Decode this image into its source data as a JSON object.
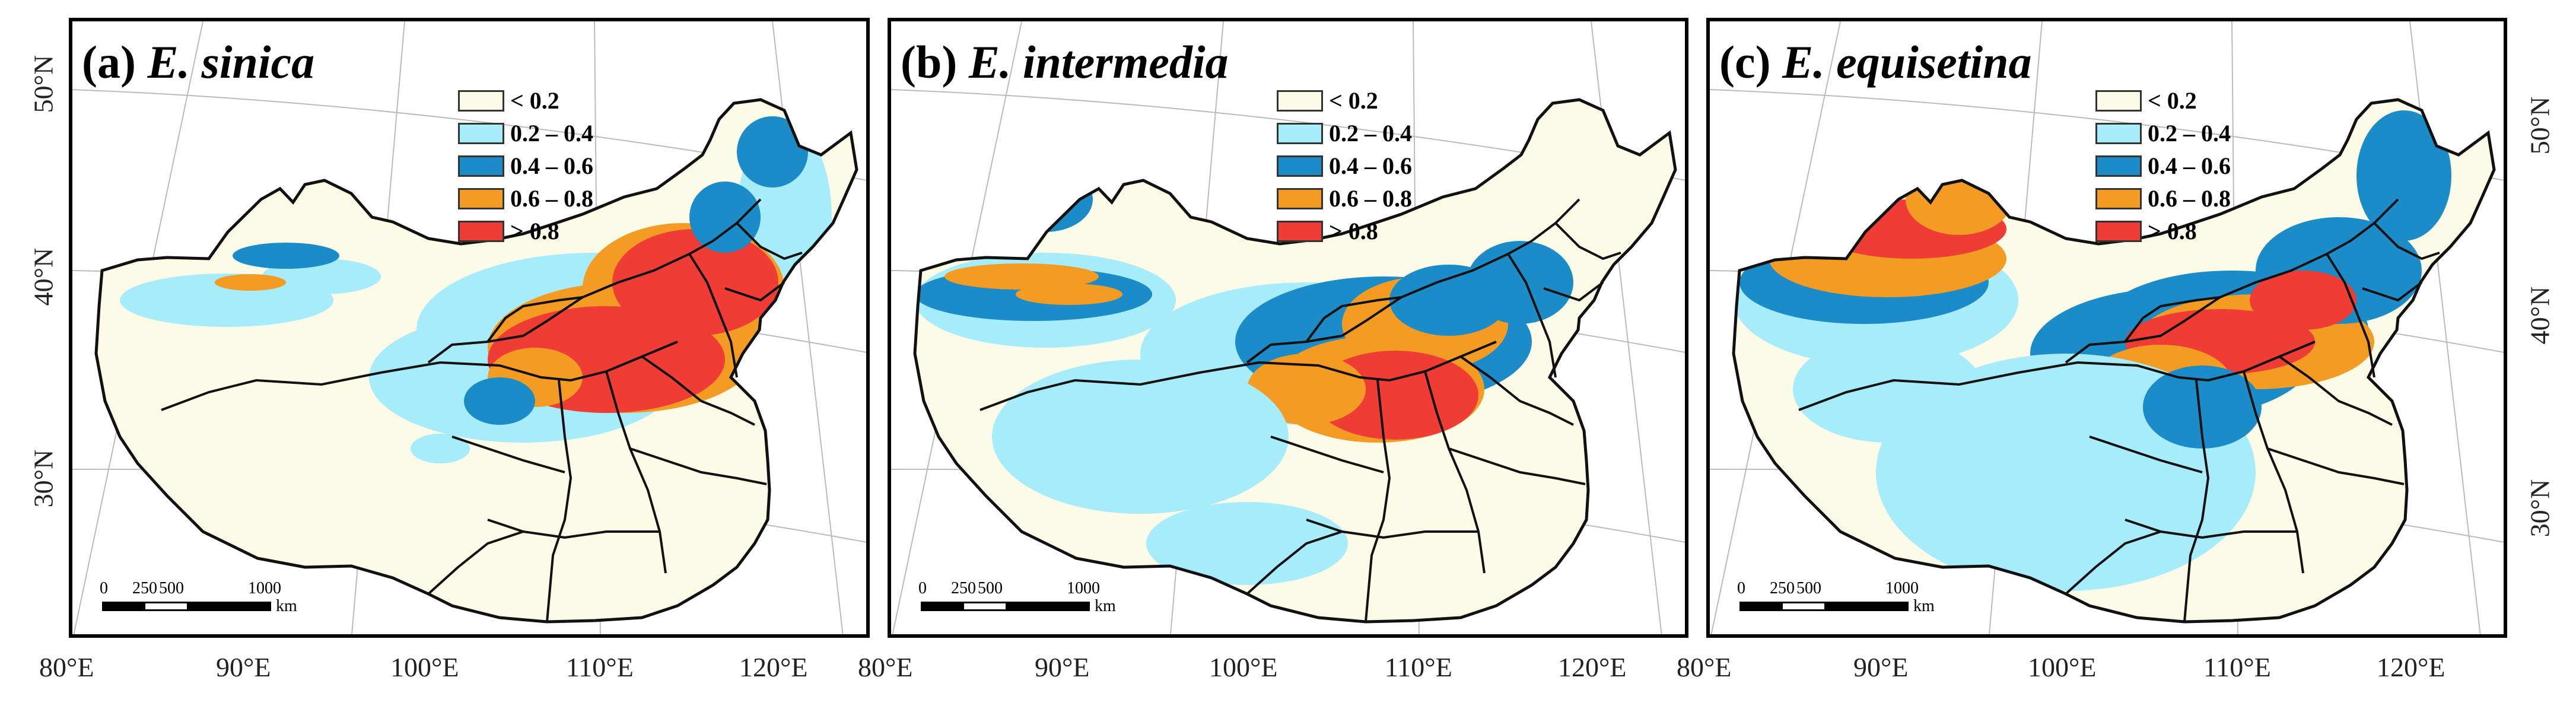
{
  "panels": [
    {
      "id": "a",
      "letter": "(a)",
      "species": "E. sinica",
      "hot": "sinica"
    },
    {
      "id": "b",
      "letter": "(b)",
      "species": "E. intermedia",
      "hot": "intermedia"
    },
    {
      "id": "c",
      "letter": "(c)",
      "species": "E. equisetina",
      "hot": "equisetina"
    }
  ],
  "legend": [
    {
      "label": "< 0.2",
      "color": "#fbfbe8"
    },
    {
      "label": "0.2 – 0.4",
      "color": "#a6ecfb"
    },
    {
      "label": "0.4 – 0.6",
      "color": "#1b8cc8"
    },
    {
      "label": "0.6 – 0.8",
      "color": "#f39b22"
    },
    {
      "label": "> 0.8",
      "color": "#ef3d36"
    }
  ],
  "scalebar": {
    "ticks": [
      "0",
      "250",
      "500",
      "1000"
    ],
    "unit": "km"
  },
  "longitude_labels": [
    "80°E",
    "90°E",
    "100°E",
    "110°E",
    "120°E"
  ],
  "latitude_labels": [
    "50°N",
    "40°N",
    "30°N"
  ]
}
